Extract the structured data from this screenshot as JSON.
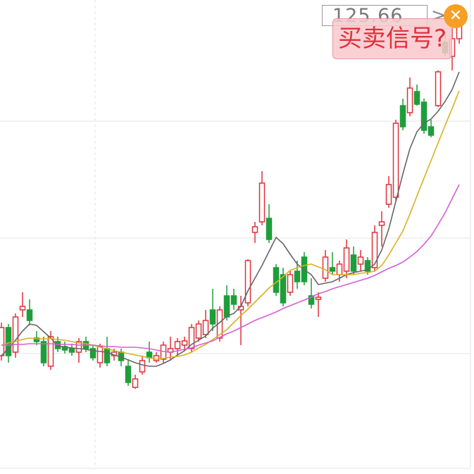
{
  "chart_data": {
    "type": "candlestick",
    "price_label": "125.66",
    "signal_button": "买卖信号?",
    "ylim": [
      60,
      127
    ],
    "yticks": [
      76.8,
      93.2,
      109.8
    ],
    "grid": true,
    "up_color": "#e0303a",
    "down_color": "#1e9e3a",
    "open": [
      76.5,
      80.5,
      77.0,
      83.0,
      83.0,
      79.0,
      78.5,
      75.0,
      78.5,
      77.8,
      77.5,
      77.0,
      78.5,
      77.5,
      75.5,
      77.5,
      76.5,
      77.0,
      75.0,
      72.0,
      74.2,
      77.0,
      75.8,
      76.0,
      77.0,
      77.5,
      78.0,
      77.5,
      79.0,
      79.5,
      83.0,
      79.0,
      85.0,
      85.0,
      83.0,
      84.0,
      94.0,
      95.5,
      96.0,
      89.0,
      88.0,
      85.5,
      88.5,
      90.5,
      85.0,
      84.5,
      87.5,
      89.0,
      88.0,
      88.5,
      90.8,
      89.5,
      90.0,
      89.0,
      95.0,
      98.0,
      99.0,
      112.0,
      111.0,
      114.0,
      112.5,
      109.0,
      112.0,
      121.0,
      119.0,
      121.5
    ],
    "high": [
      81.2,
      81.0,
      82.5,
      85.5,
      84.5,
      80.0,
      79.2,
      80.0,
      79.2,
      78.5,
      78.2,
      79.0,
      79.2,
      78.0,
      78.2,
      79.2,
      77.5,
      77.5,
      76.0,
      73.8,
      76.5,
      78.5,
      77.0,
      78.5,
      79.2,
      79.0,
      79.2,
      81.0,
      81.5,
      83.0,
      86.0,
      83.5,
      86.5,
      86.0,
      85.0,
      90.2,
      95.5,
      102.7,
      98.0,
      89.5,
      89.0,
      88.5,
      90.0,
      91.2,
      87.5,
      85.5,
      91.5,
      91.2,
      90.0,
      93.0,
      92.0,
      91.5,
      90.5,
      95.0,
      97.0,
      102.0,
      110.0,
      113.0,
      116.0,
      115.0,
      113.0,
      110.0,
      117.0,
      122.5,
      123.0,
      125.5
    ],
    "low": [
      75.8,
      75.5,
      76.2,
      82.0,
      80.8,
      78.0,
      75.0,
      74.5,
      77.0,
      76.8,
      76.5,
      75.5,
      77.0,
      75.8,
      74.8,
      75.0,
      75.8,
      75.0,
      72.2,
      71.8,
      73.8,
      75.5,
      75.5,
      75.5,
      76.0,
      76.5,
      77.2,
      77.0,
      78.5,
      79.0,
      80.0,
      78.5,
      81.5,
      83.0,
      78.0,
      83.5,
      92.5,
      95.0,
      92.5,
      85.0,
      83.5,
      85.0,
      86.0,
      86.5,
      83.2,
      82.0,
      87.0,
      88.0,
      87.0,
      87.5,
      88.0,
      88.5,
      88.0,
      88.5,
      92.0,
      97.5,
      98.5,
      108.5,
      110.5,
      112.0,
      108.0,
      107.5,
      111.8,
      119.0,
      117.0,
      120.8
    ],
    "close": [
      80.5,
      76.5,
      82.0,
      83.5,
      81.5,
      78.5,
      75.5,
      79.2,
      77.5,
      77.3,
      77.0,
      78.5,
      77.5,
      76.2,
      77.8,
      75.5,
      77.0,
      75.8,
      72.7,
      73.2,
      75.8,
      76.2,
      76.5,
      78.0,
      77.5,
      78.5,
      78.6,
      80.5,
      81.0,
      81.5,
      81.0,
      83.0,
      82.0,
      83.8,
      83.5,
      90.0,
      94.8,
      101.0,
      93.0,
      85.5,
      84.0,
      88.0,
      87.0,
      87.0,
      83.8,
      84.8,
      90.5,
      88.5,
      89.5,
      91.8,
      88.5,
      90.5,
      88.5,
      94.0,
      95.5,
      100.8,
      109.5,
      109.0,
      114.5,
      112.2,
      108.5,
      107.8,
      116.8,
      119.5,
      121.5,
      124.0
    ],
    "lines": [
      {
        "color": "#666666",
        "values": [
          76.5,
          77.5,
          78.7,
          80.0,
          81.0,
          80.8,
          79.9,
          79.0,
          77.9,
          77.7,
          77.6,
          77.5,
          77.4,
          77.2,
          77.1,
          77.0,
          76.6,
          76.3,
          75.9,
          75.5,
          75.2,
          75.0,
          75.0,
          75.4,
          75.9,
          76.6,
          77.2,
          78.1,
          78.7,
          79.3,
          80.4,
          81.2,
          82.1,
          82.5,
          83.5,
          85.7,
          87.5,
          89.3,
          91.3,
          93.3,
          92.4,
          90.9,
          89.5,
          88.7,
          88.0,
          86.6,
          86.8,
          87.0,
          87.5,
          88.0,
          88.3,
          88.5,
          88.7,
          89.5,
          91.5,
          94.5,
          98.4,
          102.3,
          105.9,
          108.3,
          109.5,
          110.1,
          111.2,
          112.6,
          114.3,
          116.8
        ]
      },
      {
        "color": "#d9b020",
        "values": [
          78.0,
          78.3,
          78.5,
          78.8,
          79.0,
          78.9,
          78.9,
          78.9,
          78.8,
          78.7,
          78.5,
          78.3,
          78.2,
          78.0,
          77.7,
          77.5,
          77.2,
          77.0,
          76.8,
          76.6,
          76.4,
          76.2,
          76.0,
          76.1,
          76.3,
          76.4,
          76.6,
          77.0,
          77.6,
          78.1,
          78.8,
          79.5,
          80.2,
          81.2,
          82.2,
          83.1,
          84.1,
          85.1,
          86.1,
          86.9,
          87.7,
          88.6,
          89.0,
          89.3,
          89.5,
          89.1,
          88.7,
          88.0,
          88.0,
          88.0,
          88.0,
          88.2,
          88.3,
          88.5,
          89.3,
          90.8,
          92.5,
          94.2,
          96.6,
          99.2,
          101.7,
          104.2,
          106.7,
          109.2,
          111.6,
          114.1
        ]
      },
      {
        "color": "#d65ed6",
        "values": [
          78.0,
          78.0,
          78.1,
          78.1,
          78.2,
          78.2,
          78.2,
          78.2,
          78.1,
          78.1,
          78.1,
          78.0,
          78.0,
          78.0,
          77.9,
          77.8,
          77.8,
          77.7,
          77.7,
          77.7,
          77.6,
          77.5,
          77.3,
          77.1,
          77.0,
          77.2,
          77.4,
          77.6,
          78.0,
          78.3,
          78.6,
          79.1,
          79.6,
          80.0,
          80.5,
          81.0,
          81.5,
          81.9,
          82.3,
          82.7,
          83.2,
          83.6,
          84.0,
          84.4,
          84.8,
          85.3,
          85.6,
          86.0,
          86.3,
          86.6,
          86.9,
          87.2,
          87.5,
          87.9,
          88.4,
          88.9,
          89.3,
          89.8,
          90.5,
          91.3,
          92.3,
          93.5,
          95.1,
          96.8,
          98.8,
          100.8
        ]
      }
    ]
  }
}
